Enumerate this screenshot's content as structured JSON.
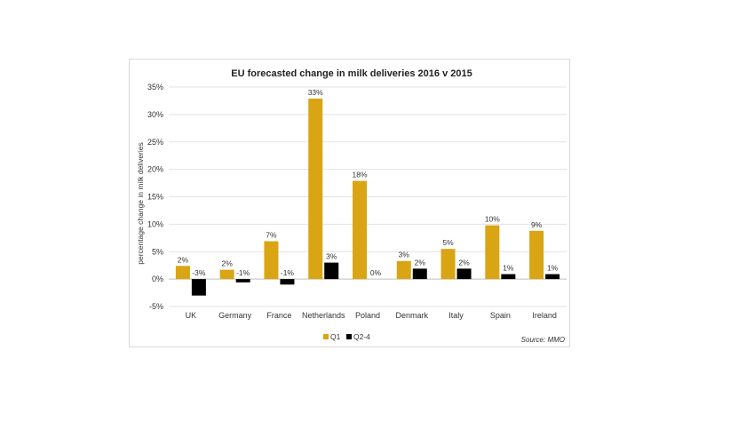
{
  "chart_data": {
    "type": "bar",
    "title": "EU forecasted change in milk deliveries 2016 v 2015",
    "xlabel": "",
    "ylabel": "percentage change in milk deliveries",
    "ylim": [
      -5,
      35
    ],
    "yticks": [
      -5,
      0,
      5,
      10,
      15,
      20,
      25,
      30,
      35
    ],
    "ytick_labels": [
      "-5%",
      "0%",
      "5%",
      "10%",
      "15%",
      "20%",
      "25%",
      "30%",
      "35%"
    ],
    "categories": [
      "UK",
      "Germany",
      "France",
      "Netherlands",
      "Poland",
      "Denmark",
      "Italy",
      "Spain",
      "Ireland"
    ],
    "series": [
      {
        "name": "Q1",
        "color": "#d9a514",
        "values": [
          2.4,
          1.7,
          6.9,
          32.9,
          17.9,
          3.3,
          5.5,
          9.8,
          8.8
        ],
        "labels": [
          "2%",
          "2%",
          "7%",
          "33%",
          "18%",
          "3%",
          "5%",
          "10%",
          "9%"
        ]
      },
      {
        "name": "Q2-4",
        "color": "#000000",
        "values": [
          -3.0,
          -0.6,
          -1.0,
          3.0,
          0.0,
          1.9,
          1.9,
          0.9,
          0.9
        ],
        "labels": [
          "-3%",
          "-1%",
          "-1%",
          "3%",
          "0%",
          "2%",
          "2%",
          "1%",
          "1%"
        ]
      }
    ],
    "grid": true,
    "legend_position": "bottom",
    "source": "Source: MMO"
  }
}
